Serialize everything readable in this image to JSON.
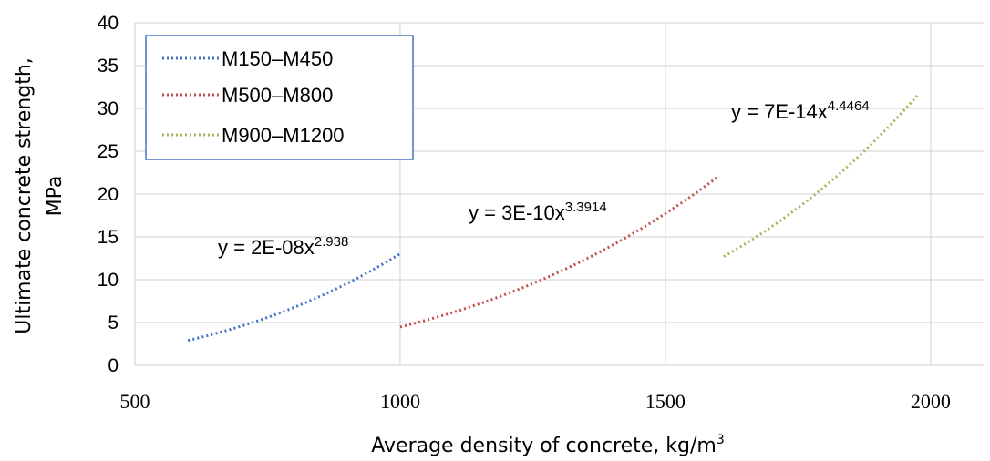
{
  "chart_data": {
    "type": "line",
    "xlabel": "Average density of concrete, kg/m",
    "xlabel_sup": "3",
    "ylabel_line1": "Ultimate concrete strength,",
    "ylabel_line2": "MPa",
    "xlim": [
      500,
      2100
    ],
    "ylim": [
      0,
      40
    ],
    "xticks": [
      "500",
      "1000",
      "1500",
      "2000"
    ],
    "yticks": [
      "0",
      "5",
      "10",
      "15",
      "20",
      "25",
      "30",
      "35",
      "40"
    ],
    "grid": true,
    "legend_position": "top-left",
    "series": [
      {
        "name": "M150–M450",
        "color": "#4472C4",
        "style": "dotted",
        "coef": 2e-08,
        "exponent": 2.938,
        "x_range": [
          600,
          1000
        ],
        "equation": "y = 2E-08x",
        "equation_exp": "2.938"
      },
      {
        "name": "M500–M800",
        "color": "#C0504D",
        "style": "dotted",
        "coef": 3e-10,
        "exponent": 3.3914,
        "x_range": [
          1000,
          1600
        ],
        "equation": "y = 3E-10x",
        "equation_exp": "3.3914"
      },
      {
        "name": "M900–M1200",
        "color": "#9BBB59",
        "style": "dotted",
        "coef": 7e-14,
        "exponent": 4.4464,
        "x_range": [
          1610,
          1975
        ],
        "equation": "y = 7E-14x",
        "equation_exp": "4.4464"
      }
    ]
  }
}
